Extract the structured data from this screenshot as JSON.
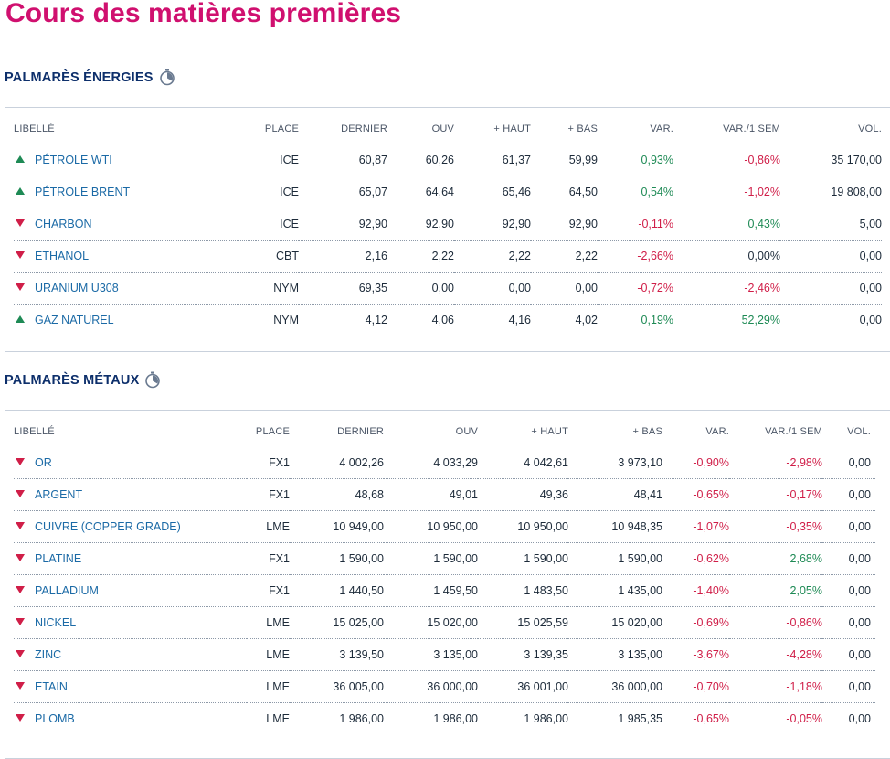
{
  "page": {
    "title": "Cours des matières premières",
    "colors": {
      "title": "#d0106f",
      "section": "#0d2f6b",
      "link": "#1b6aa6",
      "positive": "#1e8a55",
      "negative": "#d01e48"
    }
  },
  "columns": [
    "LIBELLÉ",
    "PLACE",
    "DERNIER",
    "OUV",
    "+ HAUT",
    "+ BAS",
    "VAR.",
    "VAR./1 SEM",
    "VOL."
  ],
  "energies": {
    "title": "PALMARÈS ÉNERGIES",
    "icon": "stopwatch-icon",
    "rows": [
      {
        "trend": "up",
        "name": "PÉTROLE WTI",
        "place": "ICE",
        "dernier": "60,87",
        "ouv": "60,26",
        "haut": "61,37",
        "bas": "59,99",
        "var": "0,93%",
        "var_sign": "pos",
        "var_sem": "-0,86%",
        "var_sem_sign": "neg",
        "vol": "35 170,00"
      },
      {
        "trend": "up",
        "name": "PÉTROLE BRENT",
        "place": "ICE",
        "dernier": "65,07",
        "ouv": "64,64",
        "haut": "65,46",
        "bas": "64,50",
        "var": "0,54%",
        "var_sign": "pos",
        "var_sem": "-1,02%",
        "var_sem_sign": "neg",
        "vol": "19 808,00"
      },
      {
        "trend": "down",
        "name": "CHARBON",
        "place": "ICE",
        "dernier": "92,90",
        "ouv": "92,90",
        "haut": "92,90",
        "bas": "92,90",
        "var": "-0,11%",
        "var_sign": "neg",
        "var_sem": "0,43%",
        "var_sem_sign": "pos",
        "vol": "5,00"
      },
      {
        "trend": "down",
        "name": "ETHANOL",
        "place": "CBT",
        "dernier": "2,16",
        "ouv": "2,22",
        "haut": "2,22",
        "bas": "2,22",
        "var": "-2,66%",
        "var_sign": "neg",
        "var_sem": "0,00%",
        "var_sem_sign": "neu",
        "vol": "0,00"
      },
      {
        "trend": "down",
        "name": "URANIUM U308",
        "place": "NYM",
        "dernier": "69,35",
        "ouv": "0,00",
        "haut": "0,00",
        "bas": "0,00",
        "var": "-0,72%",
        "var_sign": "neg",
        "var_sem": "-2,46%",
        "var_sem_sign": "neg",
        "vol": "0,00"
      },
      {
        "trend": "up",
        "name": "GAZ NATUREL",
        "place": "NYM",
        "dernier": "4,12",
        "ouv": "4,06",
        "haut": "4,16",
        "bas": "4,02",
        "var": "0,19%",
        "var_sign": "pos",
        "var_sem": "52,29%",
        "var_sem_sign": "pos",
        "vol": "0,00"
      }
    ]
  },
  "metaux": {
    "title": "PALMARÈS MÉTAUX",
    "icon": "stopwatch-icon",
    "rows": [
      {
        "trend": "down",
        "name": "OR",
        "place": "FX1",
        "dernier": "4 002,26",
        "ouv": "4 033,29",
        "haut": "4 042,61",
        "bas": "3 973,10",
        "var": "-0,90%",
        "var_sign": "neg",
        "var_sem": "-2,98%",
        "var_sem_sign": "neg",
        "vol": "0,00"
      },
      {
        "trend": "down",
        "name": "ARGENT",
        "place": "FX1",
        "dernier": "48,68",
        "ouv": "49,01",
        "haut": "49,36",
        "bas": "48,41",
        "var": "-0,65%",
        "var_sign": "neg",
        "var_sem": "-0,17%",
        "var_sem_sign": "neg",
        "vol": "0,00"
      },
      {
        "trend": "down",
        "name": "CUIVRE (COPPER GRADE)",
        "place": "LME",
        "dernier": "10 949,00",
        "ouv": "10 950,00",
        "haut": "10 950,00",
        "bas": "10 948,35",
        "var": "-1,07%",
        "var_sign": "neg",
        "var_sem": "-0,35%",
        "var_sem_sign": "neg",
        "vol": "0,00"
      },
      {
        "trend": "down",
        "name": "PLATINE",
        "place": "FX1",
        "dernier": "1 590,00",
        "ouv": "1 590,00",
        "haut": "1 590,00",
        "bas": "1 590,00",
        "var": "-0,62%",
        "var_sign": "neg",
        "var_sem": "2,68%",
        "var_sem_sign": "pos",
        "vol": "0,00"
      },
      {
        "trend": "down",
        "name": "PALLADIUM",
        "place": "FX1",
        "dernier": "1 440,50",
        "ouv": "1 459,50",
        "haut": "1 483,50",
        "bas": "1 435,00",
        "var": "-1,40%",
        "var_sign": "neg",
        "var_sem": "2,05%",
        "var_sem_sign": "pos",
        "vol": "0,00"
      },
      {
        "trend": "down",
        "name": "NICKEL",
        "place": "LME",
        "dernier": "15 025,00",
        "ouv": "15 020,00",
        "haut": "15 025,59",
        "bas": "15 020,00",
        "var": "-0,69%",
        "var_sign": "neg",
        "var_sem": "-0,86%",
        "var_sem_sign": "neg",
        "vol": "0,00"
      },
      {
        "trend": "down",
        "name": "ZINC",
        "place": "LME",
        "dernier": "3 139,50",
        "ouv": "3 135,00",
        "haut": "3 139,35",
        "bas": "3 135,00",
        "var": "-3,67%",
        "var_sign": "neg",
        "var_sem": "-4,28%",
        "var_sem_sign": "neg",
        "vol": "0,00"
      },
      {
        "trend": "down",
        "name": "ETAIN",
        "place": "LME",
        "dernier": "36 005,00",
        "ouv": "36 000,00",
        "haut": "36 001,00",
        "bas": "36 000,00",
        "var": "-0,70%",
        "var_sign": "neg",
        "var_sem": "-1,18%",
        "var_sem_sign": "neg",
        "vol": "0,00"
      },
      {
        "trend": "down",
        "name": "PLOMB",
        "place": "LME",
        "dernier": "1 986,00",
        "ouv": "1 986,00",
        "haut": "1 986,00",
        "bas": "1 985,35",
        "var": "-0,65%",
        "var_sign": "neg",
        "var_sem": "-0,05%",
        "var_sem_sign": "neg",
        "vol": "0,00"
      }
    ]
  }
}
